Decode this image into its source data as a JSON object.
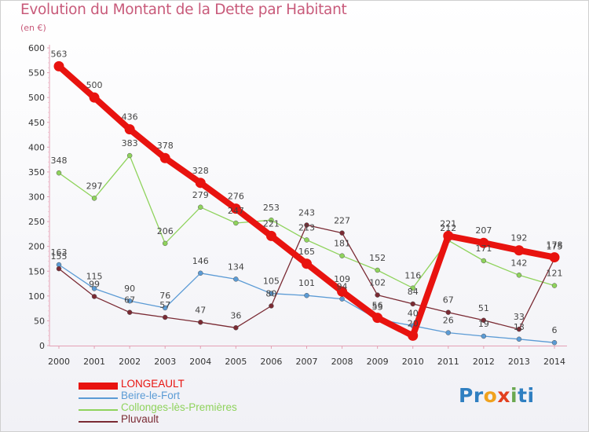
{
  "header": {
    "title": "Evolution du Montant de la Dette par Habitant",
    "unit": "(en €)"
  },
  "logo": {
    "letters": [
      "P",
      "r",
      "o",
      "x",
      "i",
      "t",
      "i"
    ],
    "colors": [
      "#2f7fc1",
      "#2f7fc1",
      "#f0a21e",
      "#e2401f",
      "#6aa84f",
      "#2f7fc1",
      "#2f7fc1"
    ]
  },
  "chart_data": {
    "type": "line",
    "title": "Evolution du Montant de la Dette par Habitant",
    "ylabel": "(en €)",
    "xlabel": "",
    "x": [
      "2000",
      "2001",
      "2002",
      "2003",
      "2004",
      "2005",
      "2006",
      "2007",
      "2008",
      "2009",
      "2010",
      "2011",
      "2012",
      "2013",
      "2014"
    ],
    "ylim": [
      0,
      600
    ],
    "yticks": [
      0,
      50,
      100,
      150,
      200,
      250,
      300,
      350,
      400,
      450,
      500,
      550,
      600
    ],
    "grid": false,
    "legend_position": "bottom-left",
    "series": [
      {
        "name": "LONGEAULT",
        "color": "#e8130f",
        "emphasis": true,
        "values": [
          563,
          500,
          436,
          378,
          328,
          276,
          221,
          165,
          109,
          56,
          20,
          221,
          207,
          192,
          178
        ]
      },
      {
        "name": "Beire-le-Fort",
        "color": "#5b9bd5",
        "emphasis": false,
        "values": [
          163,
          115,
          90,
          76,
          146,
          134,
          105,
          101,
          94,
          53,
          40,
          26,
          19,
          13,
          6
        ]
      },
      {
        "name": "Collonges-lès-Premières",
        "color": "#8fd35c",
        "emphasis": false,
        "values": [
          348,
          297,
          383,
          206,
          279,
          247,
          253,
          213,
          181,
          152,
          116,
          212,
          171,
          142,
          121
        ]
      },
      {
        "name": "Pluvault",
        "color": "#7a2a33",
        "emphasis": false,
        "values": [
          155,
          99,
          67,
          57,
          47,
          36,
          80,
          243,
          227,
          102,
          84,
          67,
          51,
          33,
          175
        ]
      }
    ]
  }
}
